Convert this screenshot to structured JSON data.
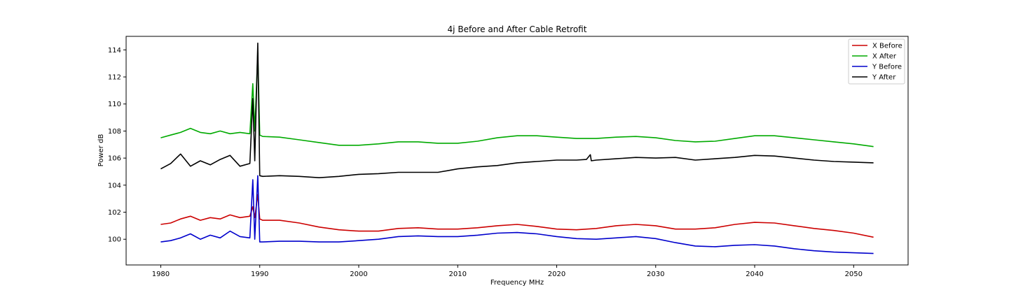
{
  "chart_data": {
    "type": "line",
    "title": "4j Before and After Cable Retrofit",
    "xlabel": "Frequency MHz",
    "ylabel": "Power dB",
    "xlim": [
      1976.5,
      2055.5
    ],
    "ylim": [
      98.1,
      115.0
    ],
    "xticks": [
      1980,
      1990,
      2000,
      2010,
      2020,
      2030,
      2040,
      2050
    ],
    "yticks": [
      100,
      102,
      104,
      106,
      108,
      110,
      112,
      114
    ],
    "grid": false,
    "legend_position": "top-right",
    "series": [
      {
        "name": "X Before",
        "color": "#cc0000",
        "x": [
          1980,
          1981,
          1982,
          1983,
          1984,
          1985,
          1986,
          1987,
          1988,
          1989,
          1989.3,
          1989.5,
          1989.8,
          1990,
          1990.3,
          1992,
          1994,
          1996,
          1998,
          2000,
          2002,
          2004,
          2006,
          2008,
          2010,
          2012,
          2014,
          2016,
          2018,
          2020,
          2022,
          2024,
          2026,
          2028,
          2030,
          2032,
          2034,
          2036,
          2038,
          2040,
          2042,
          2044,
          2046,
          2048,
          2050,
          2052
        ],
        "values": [
          101.1,
          101.2,
          101.5,
          101.7,
          101.4,
          101.6,
          101.5,
          101.8,
          101.6,
          101.7,
          102.4,
          101.6,
          103.3,
          101.5,
          101.4,
          101.4,
          101.2,
          100.9,
          100.7,
          100.6,
          100.6,
          100.8,
          100.85,
          100.75,
          100.75,
          100.85,
          101.0,
          101.1,
          100.95,
          100.75,
          100.7,
          100.8,
          101.0,
          101.1,
          101.0,
          100.75,
          100.75,
          100.85,
          101.1,
          101.25,
          101.2,
          101.0,
          100.8,
          100.65,
          100.45,
          100.15
        ]
      },
      {
        "name": "X After",
        "color": "#00aa00",
        "x": [
          1980,
          1981,
          1982,
          1983,
          1984,
          1985,
          1986,
          1987,
          1988,
          1989,
          1989.3,
          1989.5,
          1989.8,
          1990,
          1990.3,
          1992,
          1994,
          1996,
          1998,
          2000,
          2002,
          2004,
          2006,
          2008,
          2010,
          2012,
          2014,
          2016,
          2018,
          2020,
          2022,
          2024,
          2026,
          2028,
          2030,
          2032,
          2034,
          2036,
          2038,
          2040,
          2042,
          2044,
          2046,
          2048,
          2050,
          2052
        ],
        "values": [
          107.5,
          107.7,
          107.9,
          108.2,
          107.9,
          107.8,
          108.0,
          107.8,
          107.9,
          107.8,
          111.5,
          108.0,
          113.8,
          107.7,
          107.6,
          107.55,
          107.35,
          107.15,
          106.95,
          106.95,
          107.05,
          107.2,
          107.2,
          107.1,
          107.1,
          107.25,
          107.5,
          107.65,
          107.65,
          107.55,
          107.45,
          107.45,
          107.55,
          107.6,
          107.5,
          107.3,
          107.2,
          107.25,
          107.45,
          107.65,
          107.65,
          107.5,
          107.35,
          107.2,
          107.05,
          106.85
        ]
      },
      {
        "name": "Y Before",
        "color": "#0000cc",
        "x": [
          1980,
          1981,
          1982,
          1983,
          1984,
          1985,
          1986,
          1987,
          1988,
          1989,
          1989.3,
          1989.5,
          1989.8,
          1990,
          1990.3,
          1992,
          1994,
          1996,
          1998,
          2000,
          2002,
          2004,
          2006,
          2008,
          2010,
          2012,
          2014,
          2016,
          2018,
          2020,
          2022,
          2024,
          2026,
          2028,
          2030,
          2032,
          2034,
          2036,
          2038,
          2040,
          2042,
          2044,
          2046,
          2048,
          2050,
          2052
        ],
        "values": [
          99.8,
          99.9,
          100.1,
          100.4,
          100.0,
          100.3,
          100.1,
          100.6,
          100.2,
          100.1,
          104.4,
          100.0,
          104.7,
          99.8,
          99.8,
          99.85,
          99.85,
          99.8,
          99.8,
          99.9,
          100.0,
          100.2,
          100.25,
          100.2,
          100.2,
          100.3,
          100.45,
          100.5,
          100.4,
          100.2,
          100.05,
          100.0,
          100.1,
          100.2,
          100.05,
          99.75,
          99.5,
          99.45,
          99.55,
          99.6,
          99.5,
          99.3,
          99.15,
          99.05,
          99.0,
          98.95
        ]
      },
      {
        "name": "Y After",
        "color": "#000000",
        "x": [
          1980,
          1981,
          1982,
          1983,
          1984,
          1985,
          1986,
          1987,
          1988,
          1989,
          1989.3,
          1989.5,
          1989.8,
          1990,
          1990.3,
          1992,
          1994,
          1996,
          1998,
          2000,
          2002,
          2004,
          2006,
          2008,
          2010,
          2012,
          2014,
          2016,
          2018,
          2020,
          2022,
          2023,
          2023.4,
          2023.5,
          2024,
          2026,
          2028,
          2030,
          2032,
          2034,
          2036,
          2038,
          2040,
          2042,
          2044,
          2046,
          2048,
          2050,
          2052
        ],
        "values": [
          105.2,
          105.6,
          106.3,
          105.4,
          105.8,
          105.5,
          105.9,
          106.2,
          105.4,
          105.6,
          110.4,
          105.8,
          114.5,
          104.7,
          104.65,
          104.7,
          104.65,
          104.55,
          104.65,
          104.8,
          104.85,
          104.95,
          104.95,
          104.95,
          105.2,
          105.35,
          105.45,
          105.65,
          105.75,
          105.85,
          105.85,
          105.9,
          106.25,
          105.8,
          105.85,
          105.95,
          106.05,
          106.0,
          106.05,
          105.85,
          105.95,
          106.05,
          106.2,
          106.15,
          106.0,
          105.85,
          105.75,
          105.7,
          105.65
        ]
      }
    ]
  }
}
